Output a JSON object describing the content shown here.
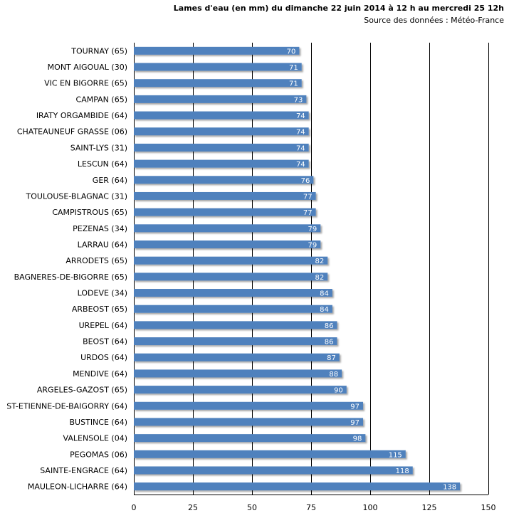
{
  "chart_data": {
    "type": "bar",
    "orientation": "horizontal",
    "title": "Lames d'eau (en mm) du dimanche  22 juin 2014 à 12 h au mercredi 25 12h",
    "subtitle": "Source des données : Météo-France",
    "categories": [
      "TOURNAY (65)",
      "MONT AIGOUAL (30)",
      "VIC EN BIGORRE (65)",
      "CAMPAN (65)",
      "IRATY ORGAMBIDE (64)",
      "CHATEAUNEUF GRASSE (06)",
      "SAINT-LYS (31)",
      "LESCUN (64)",
      "GER (64)",
      "TOULOUSE-BLAGNAC (31)",
      "CAMPISTROUS (65)",
      "PEZENAS (34)",
      "LARRAU (64)",
      "ARRODETS (65)",
      "BAGNERES-DE-BIGORRE (65)",
      "LODEVE (34)",
      "ARBEOST (65)",
      "UREPEL (64)",
      "BEOST (64)",
      "URDOS (64)",
      "MENDIVE (64)",
      "ARGELES-GAZOST (65)",
      "ST-ETIENNE-DE-BAIGORRY (64)",
      "BUSTINCE (64)",
      "VALENSOLE (04)",
      "PEGOMAS (06)",
      "SAINTE-ENGRACE (64)",
      "MAULEON-LICHARRE (64)"
    ],
    "values": [
      70,
      71,
      71,
      73,
      74,
      74,
      74,
      74,
      76,
      77,
      77,
      79,
      79,
      82,
      82,
      84,
      84,
      86,
      86,
      87,
      88,
      90,
      97,
      97,
      98,
      115,
      118,
      138
    ],
    "xlim": [
      0,
      150
    ],
    "xticks": [
      0,
      25,
      50,
      75,
      100,
      125,
      150
    ],
    "grid": "vertical",
    "bar_color": "#4f81bd",
    "grid_color": "#000000"
  }
}
